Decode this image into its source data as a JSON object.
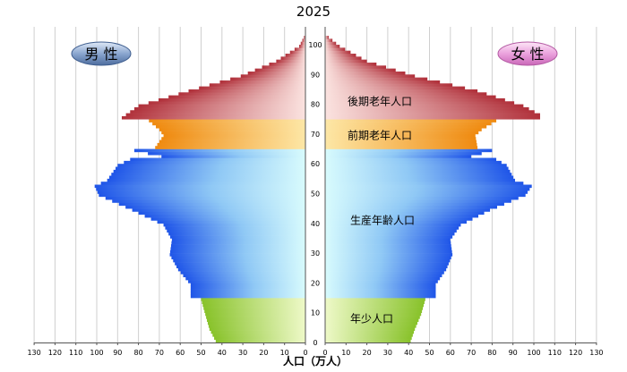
{
  "chart_data": {
    "type": "population-pyramid",
    "title": "2025",
    "xlabel": "人口（万人）",
    "x_ticks": [
      "130",
      "120",
      "110",
      "100",
      "90",
      "80",
      "70",
      "60",
      "50",
      "40",
      "30",
      "20",
      "10",
      "0"
    ],
    "y_ticks": [
      "0",
      "10",
      "20",
      "30",
      "40",
      "50",
      "60",
      "70",
      "80",
      "90",
      "100"
    ],
    "xlim": [
      0,
      130
    ],
    "ylim": [
      0,
      105
    ],
    "grid": true,
    "legend_male": "男 性",
    "legend_female": "女 性",
    "age_groups": [
      {
        "name": "年少人口",
        "range": [
          0,
          14
        ],
        "color": "#9ed43c"
      },
      {
        "name": "生産年齢人口",
        "range": [
          15,
          64
        ],
        "color": "#3a73f0"
      },
      {
        "name": "前期老年人口",
        "range": [
          65,
          74
        ],
        "color": "#f09a20"
      },
      {
        "name": "後期老年人口",
        "range": [
          75,
          105
        ],
        "color": "#c0444a"
      }
    ],
    "control_points": {
      "age": [
        0,
        4,
        9,
        14,
        15,
        19,
        24,
        29,
        34,
        39,
        44,
        49,
        52,
        54,
        59,
        61,
        62,
        64,
        65,
        69,
        71,
        74,
        75,
        76,
        79,
        84,
        89,
        94,
        99,
        103
      ],
      "male": [
        43,
        46,
        48,
        50,
        55,
        55,
        61,
        65,
        64,
        68,
        83,
        99,
        101,
        95,
        90,
        84,
        69,
        82,
        72,
        68,
        70,
        75,
        88,
        86,
        80,
        56,
        31,
        14,
        3,
        0
      ],
      "female": [
        41,
        43,
        46,
        48,
        53,
        53,
        58,
        61,
        60,
        65,
        79,
        96,
        99,
        91,
        87,
        82,
        70,
        80,
        73,
        72,
        75,
        82,
        103,
        103,
        95,
        73,
        43,
        20,
        7,
        0
      ]
    }
  }
}
